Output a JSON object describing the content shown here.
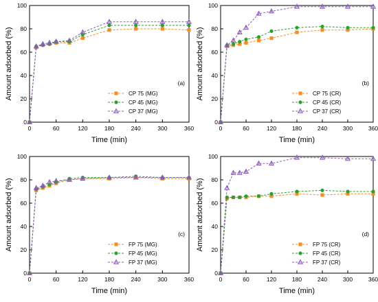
{
  "chart_data": [
    {
      "type": "line",
      "panel_label": "(a)",
      "xlabel": "Time (min)",
      "ylabel": "Amount adsorbed (%)",
      "xlim": [
        0,
        360
      ],
      "ylim": [
        0,
        100
      ],
      "xticks": [
        0,
        60,
        120,
        180,
        240,
        300,
        360
      ],
      "yticks": [
        0,
        20,
        40,
        60,
        80,
        100
      ],
      "grid": false,
      "legend_position": "bottom-right",
      "x": [
        0,
        15,
        30,
        45,
        60,
        90,
        120,
        180,
        240,
        300,
        360
      ],
      "series": [
        {
          "name": "CP 75 (MG)",
          "color": "#f28e2b",
          "marker": "square",
          "values": [
            0,
            64,
            66,
            67,
            68,
            68,
            72,
            79,
            80,
            80,
            79
          ]
        },
        {
          "name": "CP 45 (MG)",
          "color": "#2ca02c",
          "marker": "circle",
          "values": [
            0,
            65,
            66,
            67,
            69,
            69,
            75,
            83,
            83,
            83,
            83
          ]
        },
        {
          "name": "CP 37 (MG)",
          "color": "#8b5cb7",
          "marker": "triangle",
          "values": [
            0,
            65,
            67,
            68,
            69,
            70,
            77,
            86,
            86,
            86,
            86
          ]
        }
      ]
    },
    {
      "type": "line",
      "panel_label": "(b)",
      "xlabel": "Time (min)",
      "ylabel": "Amount adsorbed (%)",
      "xlim": [
        0,
        360
      ],
      "ylim": [
        0,
        100
      ],
      "xticks": [
        0,
        60,
        120,
        180,
        240,
        300,
        360
      ],
      "yticks": [
        0,
        20,
        40,
        60,
        80,
        100
      ],
      "grid": false,
      "legend_position": "bottom-right",
      "x": [
        0,
        15,
        30,
        45,
        60,
        90,
        120,
        180,
        240,
        300,
        360
      ],
      "series": [
        {
          "name": "CP 75 (CR)",
          "color": "#f28e2b",
          "marker": "square",
          "values": [
            0,
            65,
            66,
            67,
            68,
            70,
            72,
            77,
            79,
            79,
            80
          ]
        },
        {
          "name": "CP 45 (CR)",
          "color": "#2ca02c",
          "marker": "circle",
          "values": [
            0,
            66,
            67,
            69,
            71,
            73,
            78,
            81,
            82,
            81,
            81
          ]
        },
        {
          "name": "CP 37 (CR)",
          "color": "#8b5cb7",
          "marker": "triangle",
          "values": [
            0,
            66,
            70,
            77,
            81,
            93,
            95,
            99,
            99,
            99,
            99
          ]
        }
      ]
    },
    {
      "type": "line",
      "panel_label": "(c)",
      "xlabel": "Time (min)",
      "ylabel": "Amount adsorbed (%)",
      "xlim": [
        0,
        360
      ],
      "ylim": [
        0,
        100
      ],
      "xticks": [
        0,
        60,
        120,
        180,
        240,
        300,
        360
      ],
      "yticks": [
        0,
        20,
        40,
        60,
        80,
        100
      ],
      "grid": false,
      "legend_position": "bottom-right",
      "x": [
        0,
        15,
        30,
        45,
        60,
        90,
        120,
        180,
        240,
        300,
        360
      ],
      "series": [
        {
          "name": "FP 75 (MG)",
          "color": "#f28e2b",
          "marker": "square",
          "values": [
            0,
            71,
            73,
            75,
            77,
            80,
            81,
            81,
            82,
            81,
            81
          ]
        },
        {
          "name": "FP 45 (MG)",
          "color": "#2ca02c",
          "marker": "circle",
          "values": [
            0,
            72,
            74,
            76,
            78,
            81,
            82,
            82,
            83,
            82,
            82
          ]
        },
        {
          "name": "FP 37 (MG)",
          "color": "#8b5cb7",
          "marker": "triangle",
          "values": [
            0,
            73,
            75,
            78,
            79,
            80,
            81,
            82,
            82,
            82,
            82
          ]
        }
      ]
    },
    {
      "type": "line",
      "panel_label": "(d)",
      "xlabel": "Time (min)",
      "ylabel": "Amount adsorbed (%)",
      "xlim": [
        0,
        360
      ],
      "ylim": [
        0,
        100
      ],
      "xticks": [
        0,
        60,
        120,
        180,
        240,
        300,
        360
      ],
      "yticks": [
        0,
        20,
        40,
        60,
        80,
        100
      ],
      "grid": false,
      "legend_position": "bottom-right",
      "x": [
        0,
        15,
        30,
        45,
        60,
        90,
        120,
        180,
        240,
        300,
        360
      ],
      "series": [
        {
          "name": "FP 75 (CR)",
          "color": "#f28e2b",
          "marker": "square",
          "values": [
            0,
            64,
            65,
            65,
            65,
            66,
            66,
            68,
            67,
            68,
            68
          ]
        },
        {
          "name": "FP 45 (CR)",
          "color": "#2ca02c",
          "marker": "circle",
          "values": [
            0,
            65,
            65,
            65,
            66,
            66,
            68,
            70,
            71,
            70,
            70
          ]
        },
        {
          "name": "FP 37 (CR)",
          "color": "#8b5cb7",
          "marker": "triangle",
          "values": [
            0,
            73,
            86,
            86,
            87,
            94,
            94,
            99,
            99,
            98,
            98
          ]
        }
      ]
    }
  ]
}
